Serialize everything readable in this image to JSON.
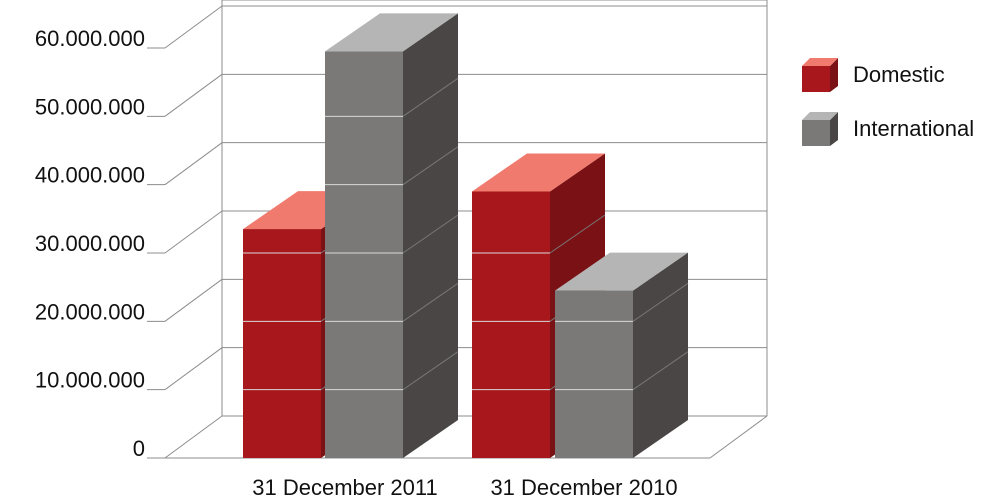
{
  "chart_data": {
    "type": "bar",
    "categories": [
      "31 December 2011",
      "31 December 2010"
    ],
    "series": [
      {
        "name": "Domestic",
        "values": [
          33500000,
          39000000
        ],
        "colors": {
          "front": "#a8171c",
          "top": "#f07a6e",
          "side": "#7a1215"
        }
      },
      {
        "name": "International",
        "values": [
          59500000,
          24500000
        ],
        "colors": {
          "front": "#7a7978",
          "top": "#b5b5b5",
          "side": "#4a4646"
        }
      }
    ],
    "ylim": [
      0,
      60000000
    ],
    "yticks": [
      0,
      10000000,
      20000000,
      30000000,
      40000000,
      50000000,
      60000000
    ],
    "ytick_labels": [
      "0",
      "10.000.000",
      "20.000.000",
      "30.000.000",
      "40.000.000",
      "50.000.000",
      "60.000.000"
    ],
    "grid": true,
    "legend": "right",
    "style": "3d-bar"
  }
}
